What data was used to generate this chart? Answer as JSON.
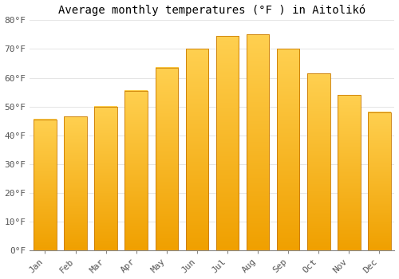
{
  "title": "Average monthly temperatures (°F ) in Aitolikó",
  "months": [
    "Jan",
    "Feb",
    "Mar",
    "Apr",
    "May",
    "Jun",
    "Jul",
    "Aug",
    "Sep",
    "Oct",
    "Nov",
    "Dec"
  ],
  "values": [
    45.5,
    46.5,
    50.0,
    55.5,
    63.5,
    70.0,
    74.5,
    75.0,
    70.0,
    61.5,
    54.0,
    48.0
  ],
  "bar_color_top": "#FFD050",
  "bar_color_bottom": "#F0A000",
  "bar_edge_color": "#C87800",
  "background_color": "#FFFFFF",
  "ylim": [
    0,
    80
  ],
  "yticks": [
    0,
    10,
    20,
    30,
    40,
    50,
    60,
    70,
    80
  ],
  "ytick_labels": [
    "0°F",
    "10°F",
    "20°F",
    "30°F",
    "40°F",
    "50°F",
    "60°F",
    "70°F",
    "80°F"
  ],
  "title_fontsize": 10,
  "tick_fontsize": 8,
  "grid_color": "#E0E0E0",
  "font_family": "monospace",
  "bar_width": 0.75
}
